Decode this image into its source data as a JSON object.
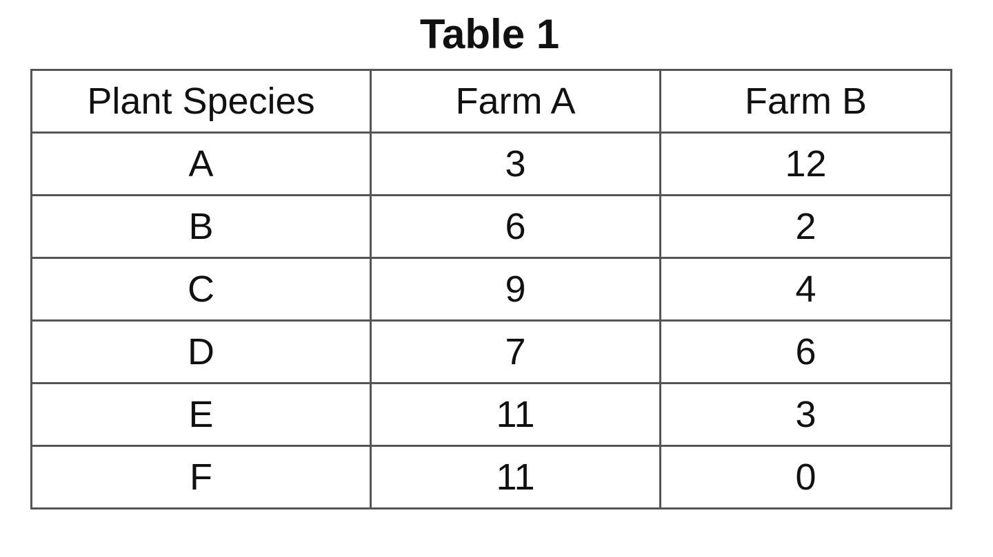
{
  "title": "Table 1",
  "table": {
    "headers": [
      "Plant Species",
      "Farm A",
      "Farm B"
    ],
    "rows": [
      [
        "A",
        "3",
        "12"
      ],
      [
        "B",
        "6",
        "2"
      ],
      [
        "C",
        "9",
        "4"
      ],
      [
        "D",
        "7",
        "6"
      ],
      [
        "E",
        "11",
        "3"
      ],
      [
        "F",
        "11",
        "0"
      ]
    ]
  }
}
